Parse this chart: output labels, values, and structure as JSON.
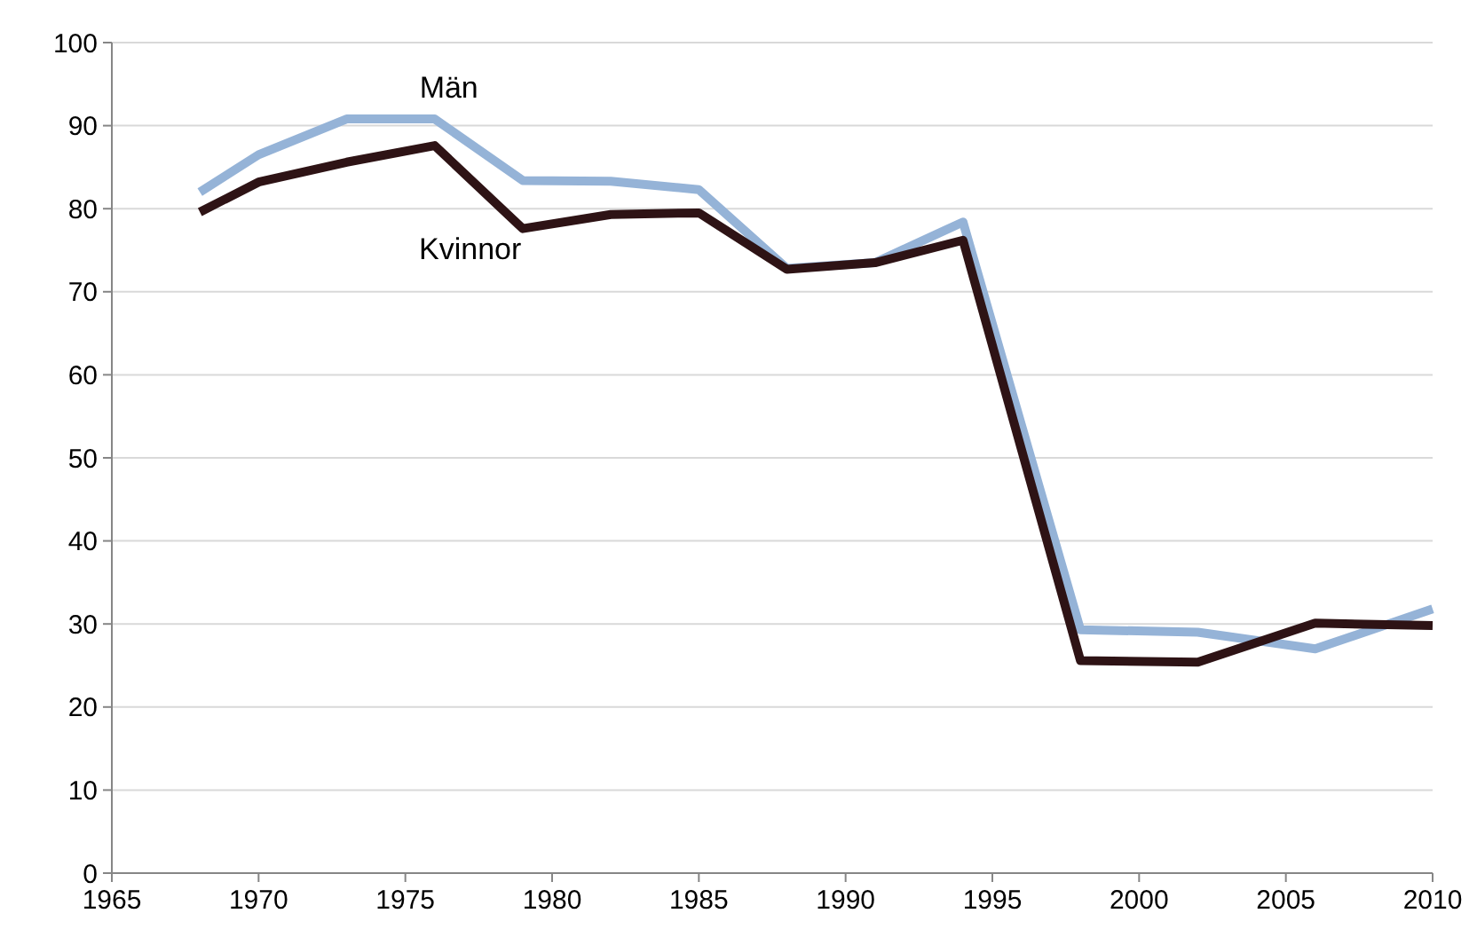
{
  "chart_data": {
    "type": "line",
    "x": [
      1968,
      1970,
      1973,
      1976,
      1979,
      1982,
      1985,
      1988,
      1991,
      1994,
      1998,
      2002,
      2006,
      2010
    ],
    "series": [
      {
        "name": "Män",
        "color": "#95b3d7",
        "values": [
          82,
          86.5,
          90.8,
          90.8,
          83.4,
          83.3,
          82.3,
          72.8,
          73.5,
          78.4,
          29.3,
          29,
          27,
          31.8
        ]
      },
      {
        "name": "Kvinnor",
        "color": "#2e1315",
        "values": [
          79.6,
          83.2,
          85.6,
          87.6,
          77.6,
          79.3,
          79.5,
          72.7,
          73.5,
          76.2,
          25.6,
          25.4,
          30.1,
          29.8
        ]
      }
    ],
    "xlim": [
      1965,
      2010
    ],
    "xticks": [
      1965,
      1970,
      1975,
      1980,
      1985,
      1990,
      1995,
      2000,
      2005,
      2010
    ],
    "ylim": [
      0,
      100
    ],
    "yticks": [
      0,
      10,
      20,
      30,
      40,
      50,
      60,
      70,
      80,
      90,
      100
    ],
    "grid": "y",
    "marker": "none",
    "line_style": "solid"
  }
}
